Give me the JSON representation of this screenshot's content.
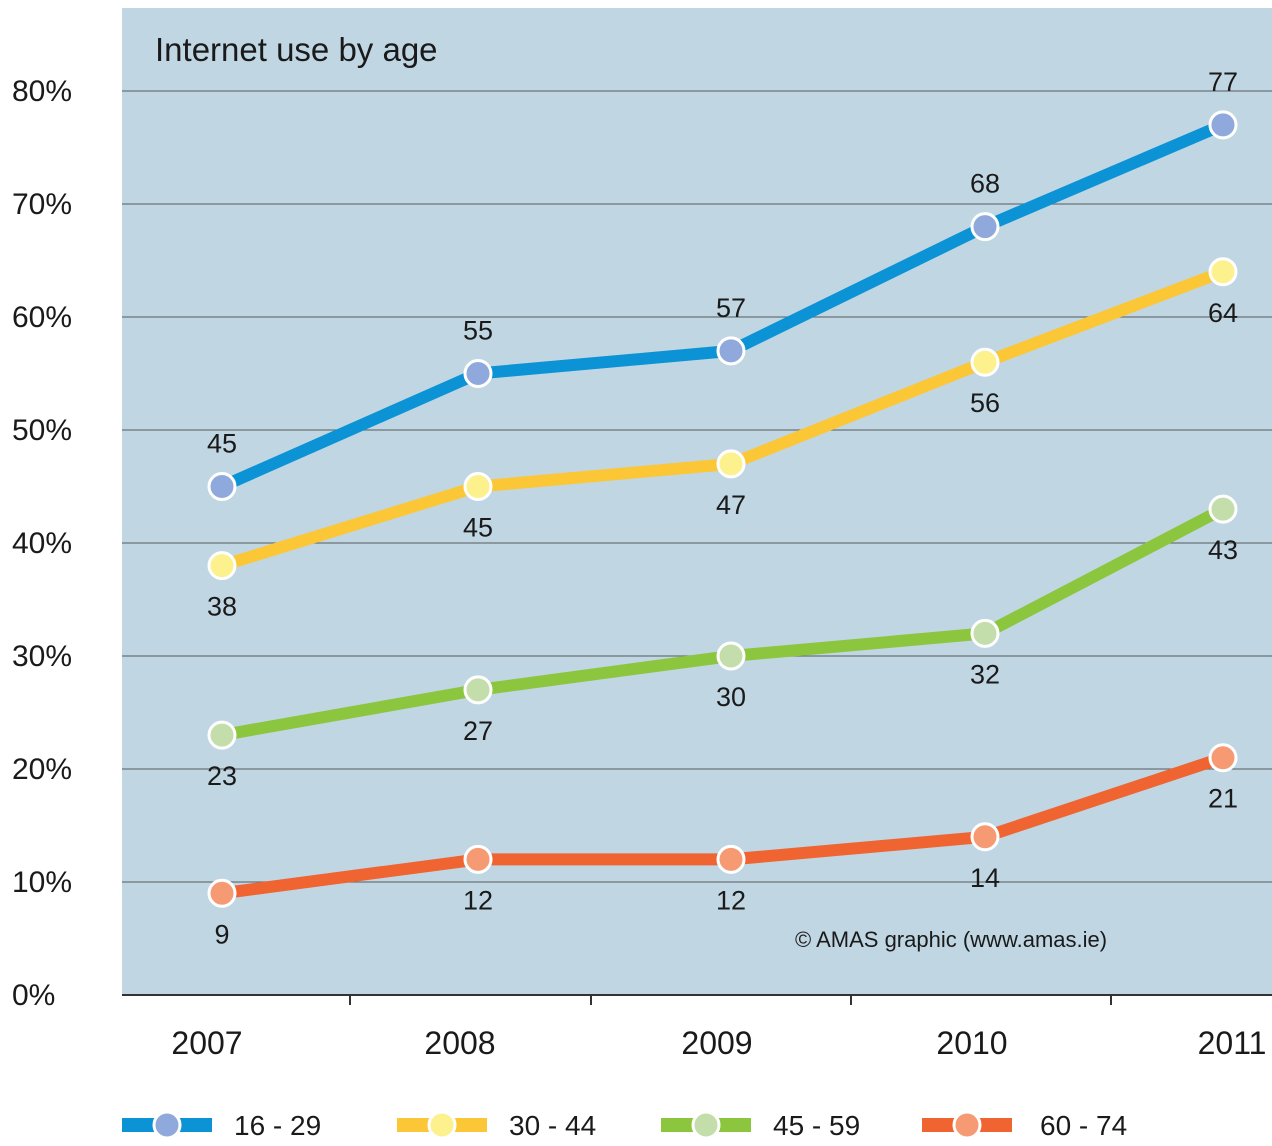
{
  "chart_data": {
    "type": "line",
    "title": "Internet use by age",
    "credit": "© AMAS graphic (www.amas.ie)",
    "x": [
      "2007",
      "2008",
      "2009",
      "2010",
      "2011"
    ],
    "ylim": [
      0,
      80
    ],
    "yticks": [
      "0%",
      "10%",
      "20%",
      "30%",
      "40%",
      "50%",
      "60%",
      "70%",
      "80%"
    ],
    "grid": true,
    "legend_position": "bottom",
    "background_color": "#c0d6e3",
    "series": [
      {
        "name": "16 - 29",
        "line_color": "#0b93d5",
        "marker_color": "#8fa9dc",
        "values": [
          45,
          55,
          57,
          68,
          77
        ],
        "labels": [
          "45",
          "55",
          "57",
          "68",
          "77"
        ],
        "label_side": [
          "above",
          "above",
          "above",
          "above",
          "above"
        ]
      },
      {
        "name": "30 - 44",
        "line_color": "#fcc736",
        "marker_color": "#fcf18d",
        "values": [
          38,
          45,
          47,
          56,
          64
        ],
        "labels": [
          "38",
          "45",
          "47",
          "56",
          "64"
        ],
        "label_side": [
          "below",
          "below",
          "below",
          "below",
          "below"
        ]
      },
      {
        "name": "45 - 59",
        "line_color": "#8cc63f",
        "marker_color": "#c3deaa",
        "values": [
          23,
          27,
          30,
          32,
          43
        ],
        "labels": [
          "23",
          "27",
          "30",
          "32",
          "43"
        ],
        "label_side": [
          "below",
          "below",
          "below",
          "below",
          "below"
        ]
      },
      {
        "name": "60 - 74",
        "line_color": "#ef6430",
        "marker_color": "#f69a73",
        "values": [
          9,
          12,
          12,
          14,
          21
        ],
        "labels": [
          "9",
          "12",
          "12",
          "14",
          "21"
        ],
        "label_side": [
          "below",
          "below",
          "below",
          "below",
          "below"
        ]
      }
    ]
  }
}
